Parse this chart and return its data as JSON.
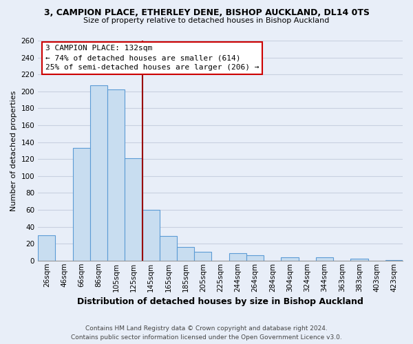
{
  "title_line1": "3, CAMPION PLACE, ETHERLEY DENE, BISHOP AUCKLAND, DL14 0TS",
  "title_line2": "Size of property relative to detached houses in Bishop Auckland",
  "xlabel": "Distribution of detached houses by size in Bishop Auckland",
  "ylabel": "Number of detached properties",
  "bar_labels": [
    "26sqm",
    "46sqm",
    "66sqm",
    "86sqm",
    "105sqm",
    "125sqm",
    "145sqm",
    "165sqm",
    "185sqm",
    "205sqm",
    "225sqm",
    "244sqm",
    "264sqm",
    "284sqm",
    "304sqm",
    "324sqm",
    "344sqm",
    "363sqm",
    "383sqm",
    "403sqm",
    "423sqm"
  ],
  "bar_values": [
    30,
    0,
    133,
    207,
    202,
    121,
    60,
    29,
    16,
    10,
    0,
    9,
    6,
    0,
    4,
    0,
    4,
    0,
    2,
    0,
    1
  ],
  "bar_color": "#c8ddf0",
  "bar_edge_color": "#5b9bd5",
  "vline_color": "#990000",
  "vline_x_index": 5.5,
  "annotation_title": "3 CAMPION PLACE: 132sqm",
  "annotation_line2": "← 74% of detached houses are smaller (614)",
  "annotation_line3": "25% of semi-detached houses are larger (206) →",
  "annotation_box_color": "#ffffff",
  "annotation_box_edge": "#cc0000",
  "footer_line1": "Contains HM Land Registry data © Crown copyright and database right 2024.",
  "footer_line2": "Contains public sector information licensed under the Open Government Licence v3.0.",
  "ylim": [
    0,
    260
  ],
  "yticks": [
    0,
    20,
    40,
    60,
    80,
    100,
    120,
    140,
    160,
    180,
    200,
    220,
    240,
    260
  ],
  "background_color": "#e8eef8",
  "grid_color": "#c8d0e0",
  "title1_fontsize": 9,
  "title2_fontsize": 8,
  "xlabel_fontsize": 9,
  "ylabel_fontsize": 8,
  "tick_fontsize": 7.5,
  "footer_fontsize": 6.5
}
